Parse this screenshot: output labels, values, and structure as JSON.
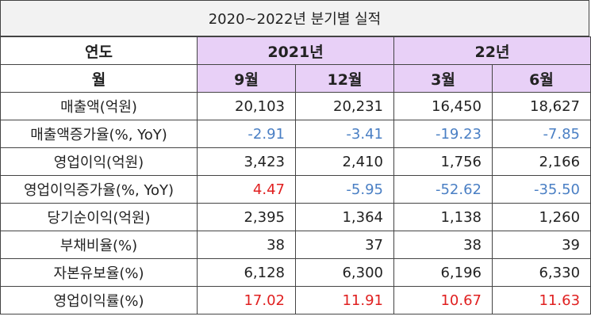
{
  "title": "2020~2022년 분기별 실적",
  "header_row1": {
    "label": "연도",
    "year1": "2021년",
    "year2": "22년"
  },
  "header_row2": {
    "label": "월",
    "months": [
      "9월",
      "12월",
      "3월",
      "6월"
    ]
  },
  "rows": [
    {
      "label": "매출액(억원)",
      "values": [
        "20,103",
        "20,231",
        "16,450",
        "18,627"
      ],
      "colors": [
        "#222222",
        "#222222",
        "#222222",
        "#222222"
      ]
    },
    {
      "label": "매출액증가율(%, YoY)",
      "values": [
        "-2.91",
        "-3.41",
        "-19.23",
        "-7.85"
      ],
      "colors": [
        "#4a7fc4",
        "#4a7fc4",
        "#4a7fc4",
        "#4a7fc4"
      ]
    },
    {
      "label": "영업이익(억원)",
      "values": [
        "3,423",
        "2,410",
        "1,756",
        "2,166"
      ],
      "colors": [
        "#222222",
        "#222222",
        "#222222",
        "#222222"
      ]
    },
    {
      "label": "영업이익증가율(%, YoY)",
      "values": [
        "4.47",
        "-5.95",
        "-52.62",
        "-35.50"
      ],
      "colors": [
        "#e02020",
        "#4a7fc4",
        "#4a7fc4",
        "#4a7fc4"
      ]
    },
    {
      "label": "당기순이익(억원)",
      "values": [
        "2,395",
        "1,364",
        "1,138",
        "1,260"
      ],
      "colors": [
        "#222222",
        "#222222",
        "#222222",
        "#222222"
      ]
    },
    {
      "label": "부채비율(%)",
      "values": [
        "38",
        "37",
        "38",
        "39"
      ],
      "colors": [
        "#222222",
        "#222222",
        "#222222",
        "#222222"
      ]
    },
    {
      "label": "자본유보율(%)",
      "values": [
        "6,128",
        "6,300",
        "6,196",
        "6,330"
      ],
      "colors": [
        "#222222",
        "#222222",
        "#222222",
        "#222222"
      ]
    },
    {
      "label": "영업이익률(%)",
      "values": [
        "17.02",
        "11.91",
        "10.67",
        "11.63"
      ],
      "colors": [
        "#e02020",
        "#e02020",
        "#e02020",
        "#e02020"
      ]
    }
  ],
  "colors": {
    "header_purple": "#e8d0f7",
    "title_bg": "#f2f2f2",
    "negative_blue": "#4a7fc4",
    "highlight_red": "#e02020"
  }
}
